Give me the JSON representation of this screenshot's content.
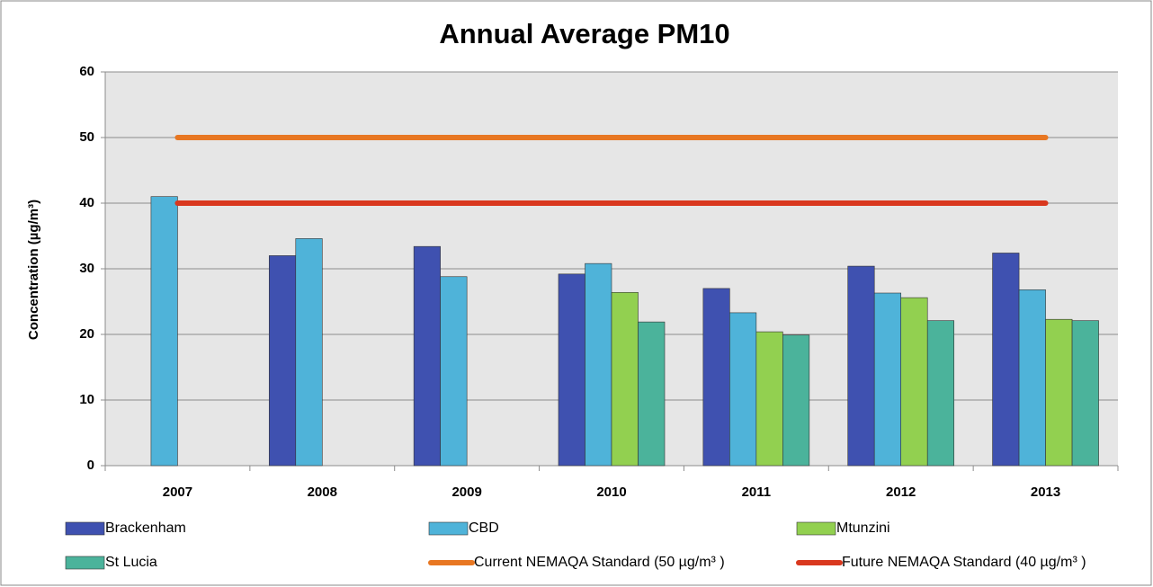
{
  "chart_data": {
    "type": "bar",
    "title": "Annual Average PM10",
    "y_label": "Concentration (µg/m³)",
    "categories": [
      "2007",
      "2008",
      "2009",
      "2010",
      "2011",
      "2012",
      "2013"
    ],
    "series": [
      {
        "name": "Brackenham",
        "type": "bar",
        "color": "#3f51b0",
        "values": [
          null,
          32.0,
          33.4,
          29.2,
          27.0,
          30.4,
          32.4
        ]
      },
      {
        "name": "CBD",
        "type": "bar",
        "color": "#4fb3d9",
        "values": [
          41.0,
          34.6,
          28.8,
          30.8,
          23.3,
          26.3,
          26.8
        ]
      },
      {
        "name": "Mtunzini",
        "type": "bar",
        "color": "#92d050",
        "values": [
          null,
          null,
          null,
          26.4,
          20.4,
          25.6,
          22.3
        ]
      },
      {
        "name": "St Lucia",
        "type": "bar",
        "color": "#4bb39b",
        "values": [
          null,
          null,
          null,
          21.9,
          19.9,
          22.1,
          22.1
        ]
      },
      {
        "name": "Current NEMAQA Standard (50 µg/m³ )",
        "type": "line",
        "color": "#e87722",
        "values": [
          50,
          50,
          50,
          50,
          50,
          50,
          50
        ]
      },
      {
        "name": "Future NEMAQA Standard (40 µg/m³ )",
        "type": "line",
        "color": "#d9381e",
        "values": [
          40,
          40,
          40,
          40,
          40,
          40,
          40
        ]
      }
    ],
    "ylim": [
      0,
      60
    ],
    "yticks": [
      0,
      10,
      20,
      30,
      40,
      50,
      60
    ],
    "grid": true,
    "legend": "bottom"
  }
}
